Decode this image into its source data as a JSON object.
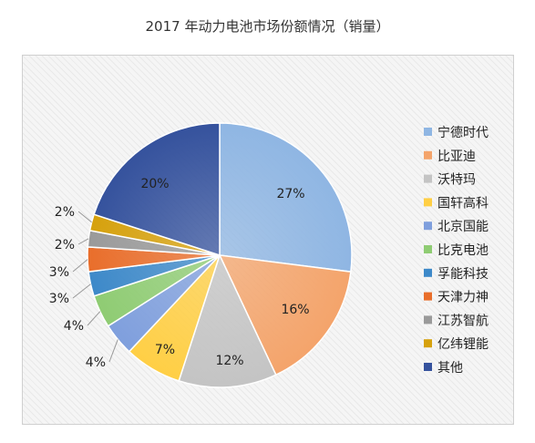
{
  "chart_data": {
    "type": "pie",
    "title": "2017 年动力电池市场份额情况（销量）",
    "categories": [
      "宁德时代",
      "比亚迪",
      "沃特玛",
      "国轩高科",
      "北京国能",
      "比克电池",
      "孚能科技",
      "天津力神",
      "江苏智航",
      "亿纬锂能",
      "其他"
    ],
    "values": [
      27,
      16,
      12,
      7,
      4,
      4,
      3,
      3,
      2,
      2,
      20
    ],
    "labels": [
      "27%",
      "16%",
      "12%",
      "7%",
      "4%",
      "4%",
      "3%",
      "3%",
      "2%",
      "2%",
      "20%"
    ],
    "colors": [
      "#8fb6e3",
      "#f4a46b",
      "#c4c4c4",
      "#ffcf45",
      "#7f9fdd",
      "#8fcc73",
      "#3d89c9",
      "#e96e2b",
      "#9a9a9a",
      "#d6a10d",
      "#35529d"
    ],
    "legend_position": "right"
  }
}
